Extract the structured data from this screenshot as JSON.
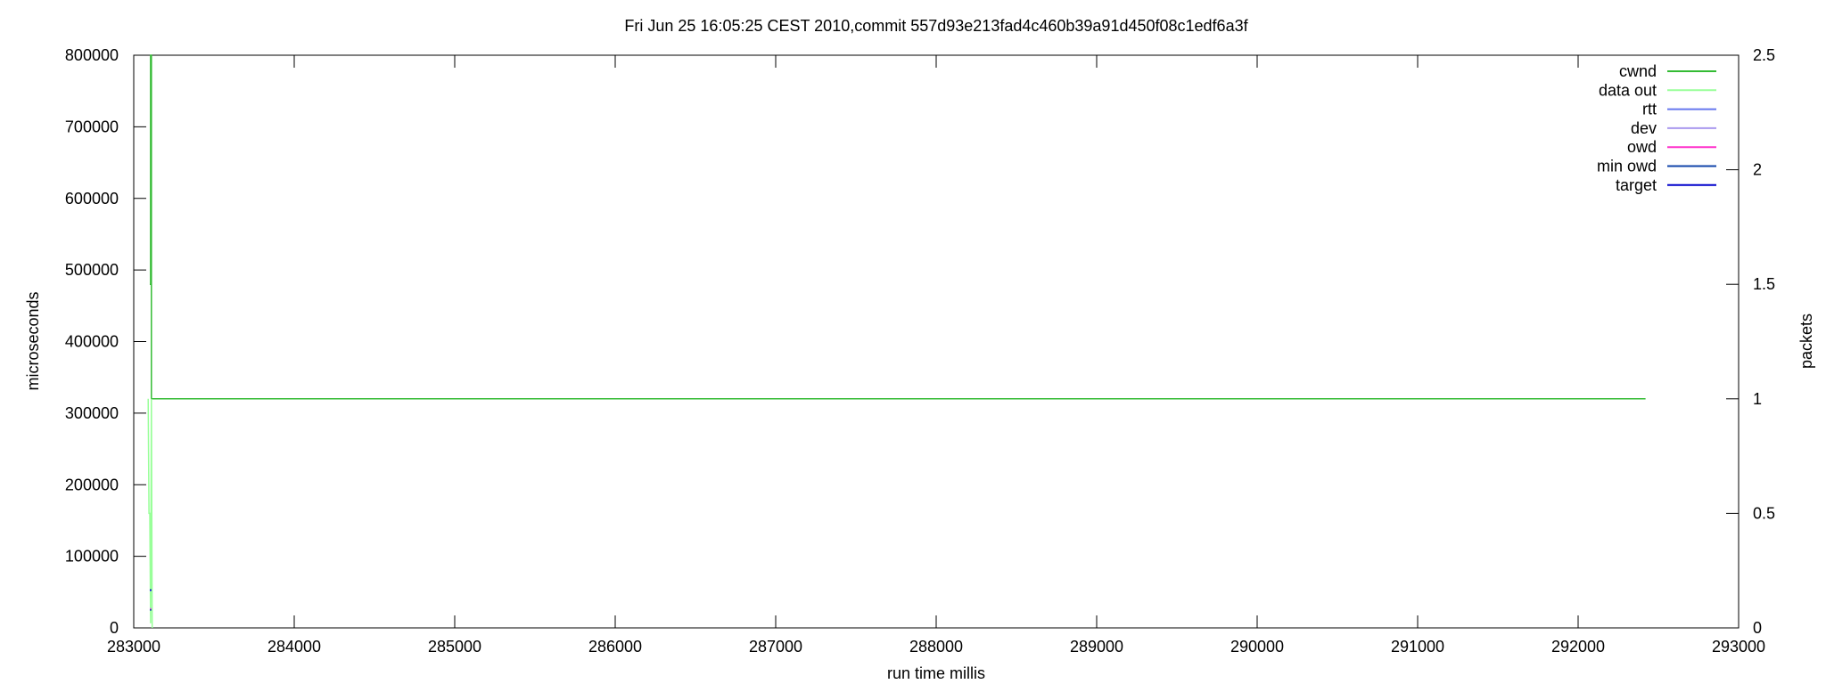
{
  "chart_data": {
    "type": "line",
    "title": "Fri Jun 25 16:05:25 CEST 2010,commit 557d93e213fad4c460b39a91d450f08c1edf6a3f",
    "xlabel": "run time millis",
    "ylabel": "microseconds",
    "y2label": "packets",
    "xlim": [
      283000,
      293000
    ],
    "ylim": [
      0,
      800000
    ],
    "y2lim": [
      0,
      2.5
    ],
    "x_ticks": [
      283000,
      284000,
      285000,
      286000,
      287000,
      288000,
      289000,
      290000,
      291000,
      292000,
      293000
    ],
    "y_ticks": [
      0,
      100000,
      200000,
      300000,
      400000,
      500000,
      600000,
      700000,
      800000
    ],
    "y2_ticks": [
      0,
      0.5,
      1,
      1.5,
      2,
      2.5
    ],
    "grid": false,
    "legend_position": "top-right",
    "series": [
      {
        "name": "cwnd",
        "axis": "y2",
        "color": "#33bb33",
        "points": [
          [
            283100,
            1.5
          ],
          [
            283105,
            1.5
          ],
          [
            283105,
            2.5
          ],
          [
            283110,
            2.5
          ],
          [
            283110,
            1.0
          ],
          [
            292420,
            1.0
          ]
        ]
      },
      {
        "name": "data out",
        "axis": "y2",
        "color": "#99ff99",
        "points": [
          [
            283090,
            1.0
          ],
          [
            283095,
            0.5
          ],
          [
            283100,
            0.5
          ],
          [
            283105,
            0.02
          ],
          [
            283110,
            1.0
          ],
          [
            283115,
            0.0
          ]
        ]
      },
      {
        "name": "rtt",
        "axis": "y",
        "color": "#6677ee",
        "points": [
          [
            283100,
            52000
          ],
          [
            283110,
            52000
          ]
        ]
      },
      {
        "name": "dev",
        "axis": "y",
        "color": "#aa99ee",
        "points": [
          [
            283100,
            27000
          ],
          [
            283110,
            27000
          ]
        ]
      },
      {
        "name": "owd",
        "axis": "y",
        "color": "#ff33cc",
        "points": [
          [
            283100,
            26000
          ],
          [
            283110,
            26000
          ]
        ]
      },
      {
        "name": "min owd",
        "axis": "y",
        "color": "#1144aa",
        "points": [
          [
            283100,
            25000
          ],
          [
            283110,
            25000
          ]
        ]
      },
      {
        "name": "target",
        "axis": "y",
        "color": "#0000cc",
        "points": [
          [
            283100,
            53000
          ],
          [
            283110,
            53000
          ]
        ]
      }
    ]
  }
}
